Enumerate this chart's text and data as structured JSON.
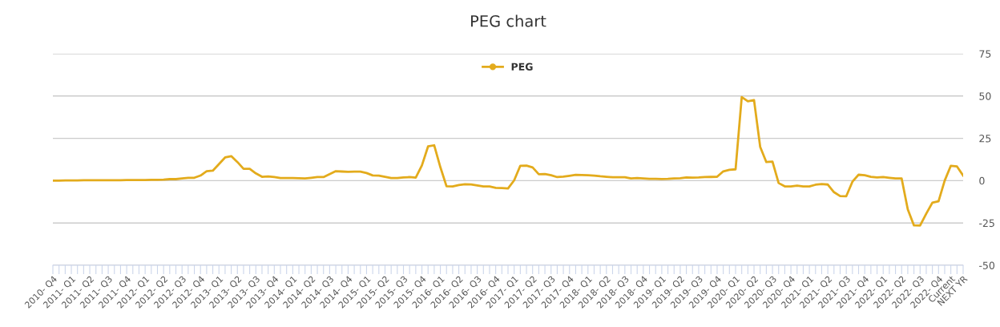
{
  "chart_data": {
    "type": "line",
    "title": "PEG chart",
    "categories": [
      "2010- Q4",
      null,
      null,
      "2011- Q1",
      null,
      null,
      "2011- Q2",
      null,
      null,
      "2011- Q3",
      null,
      null,
      "2011- Q4",
      null,
      null,
      "2012- Q1",
      null,
      null,
      "2012- Q2",
      null,
      null,
      "2012- Q3",
      null,
      null,
      "2012- Q4",
      null,
      null,
      "2013- Q1",
      null,
      null,
      "2013- Q2",
      null,
      null,
      "2013- Q3",
      null,
      null,
      "2013- Q4",
      null,
      null,
      "2014- Q1",
      null,
      null,
      "2014- Q2",
      null,
      null,
      "2014- Q3",
      null,
      null,
      "2014- Q4",
      null,
      null,
      "2015- Q1",
      null,
      null,
      "2015- Q2",
      null,
      null,
      "2015- Q3",
      null,
      null,
      "2015- Q4",
      null,
      null,
      "2016- Q1",
      null,
      null,
      "2016- Q2",
      null,
      null,
      "2016- Q3",
      null,
      null,
      "2016- Q4",
      null,
      null,
      "2017- Q1",
      null,
      null,
      "2017- Q2",
      null,
      null,
      "2017- Q3",
      null,
      null,
      "2017- Q4",
      null,
      null,
      "2018- Q1",
      null,
      null,
      "2018- Q2",
      null,
      null,
      "2018- Q3",
      null,
      null,
      "2018- Q4",
      null,
      null,
      "2019- Q1",
      null,
      null,
      "2019- Q2",
      null,
      null,
      "2019- Q3",
      null,
      null,
      "2019- Q4",
      null,
      null,
      "2020- Q1",
      null,
      null,
      "2020- Q2",
      null,
      null,
      "2020- Q3",
      null,
      null,
      "2020- Q4",
      null,
      null,
      "2021- Q1",
      null,
      null,
      "2021- Q2",
      null,
      null,
      "2021- Q3",
      null,
      null,
      "2021- Q4",
      null,
      null,
      "2022- Q1",
      null,
      null,
      "2022- Q2",
      null,
      null,
      "2022- Q3",
      null,
      null,
      "2022- Q4",
      null,
      "Current",
      null,
      "NEXT YR"
    ],
    "series": [
      {
        "name": "PEG",
        "color": "#e3ab1c",
        "values": [
          0,
          0,
          0.1,
          0.1,
          0.1,
          0.2,
          0.2,
          0.2,
          0.2,
          0.3,
          0.3,
          0.3,
          0.4,
          0.4,
          0.4,
          0.4,
          0.5,
          0.5,
          0.6,
          0.9,
          0.9,
          1.3,
          1.7,
          1.7,
          3,
          5.6,
          5.9,
          9.8,
          13.7,
          14.5,
          11,
          7,
          7,
          4.3,
          2.3,
          2.5,
          2.1,
          1.6,
          1.6,
          1.5,
          1.4,
          1.3,
          1.7,
          2.1,
          2.1,
          3.9,
          5.6,
          5.4,
          5.2,
          5.3,
          5.3,
          4.5,
          3.1,
          3,
          2.3,
          1.6,
          1.6,
          1.9,
          2.1,
          1.8,
          9,
          20.2,
          20.9,
          8,
          -3.3,
          -3.4,
          -2.6,
          -2.1,
          -2.2,
          -2.8,
          -3.4,
          -3.4,
          -4.2,
          -4.4,
          -4.6,
          0.2,
          8.8,
          8.9,
          7.8,
          3.8,
          3.9,
          3.2,
          2.1,
          2.4,
          2.9,
          3.4,
          3.3,
          3.2,
          3,
          2.6,
          2.3,
          2,
          2,
          2,
          1.3,
          1.5,
          1.3,
          1.1,
          1.1,
          1,
          1.1,
          1.3,
          1.4,
          1.9,
          1.8,
          1.9,
          2.1,
          2.2,
          2.3,
          5.5,
          6.4,
          6.7,
          49.4,
          46.9,
          47.6,
          20,
          11,
          11.3,
          -1.4,
          -3.4,
          -3.4,
          -3,
          -3.4,
          -3.4,
          -2.4,
          -2,
          -2.3,
          -6.8,
          -9.1,
          -9.2,
          -0.6,
          3.5,
          3.2,
          2.3,
          1.9,
          2.1,
          1.7,
          1.3,
          1.3,
          -17,
          -26.4,
          -26.5,
          -19.5,
          -13,
          -12.2,
          0,
          8.8,
          8.4,
          3
        ]
      }
    ],
    "ylim": [
      -50,
      75
    ],
    "yticks": [
      -50,
      -25,
      0,
      25,
      50,
      75
    ],
    "grid": "y",
    "legend": "top",
    "marker": "none",
    "line_style": "solid"
  }
}
